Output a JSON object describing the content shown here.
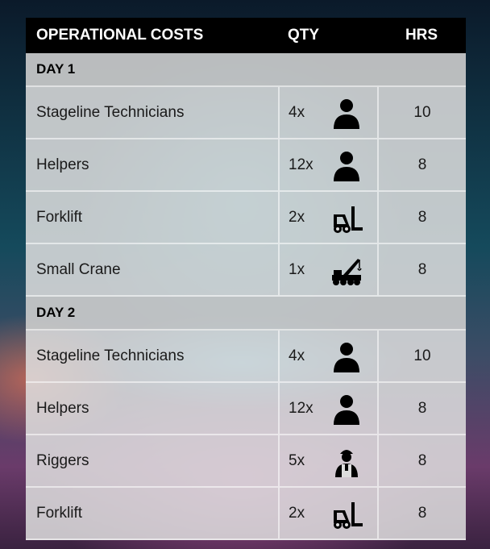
{
  "header": {
    "columns": [
      "OPERATIONAL COSTS",
      "QTY",
      "HRS"
    ]
  },
  "sections": [
    {
      "title": "DAY 1",
      "rows": [
        {
          "item": "Stageline Technicians",
          "qty": "4x",
          "hrs": 10
        },
        {
          "item": "Helpers",
          "qty": "12x",
          "hrs": 8
        },
        {
          "item": "Forklift",
          "qty": "2x",
          "hrs": 8
        },
        {
          "item": "Small Crane",
          "qty": "1x",
          "hrs": 8
        }
      ]
    },
    {
      "title": "DAY 2",
      "rows": [
        {
          "item": "Stageline Technicians",
          "qty": "4x",
          "hrs": 10
        },
        {
          "item": "Helpers",
          "qty": "12x",
          "hrs": 8
        },
        {
          "item": "Riggers",
          "qty": "5x",
          "hrs": 8
        },
        {
          "item": "Forklift",
          "qty": "2x",
          "hrs": 8
        }
      ]
    }
  ]
}
